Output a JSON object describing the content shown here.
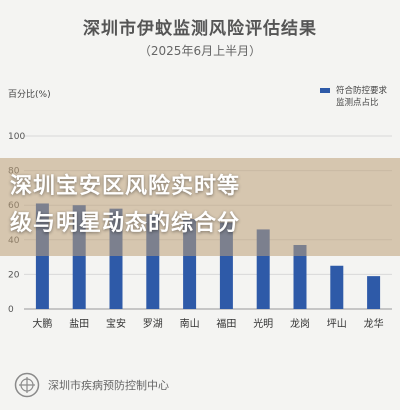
{
  "title": "深圳市伊蚊监测风险评估结果",
  "subtitle": "（2025年6月上半月）",
  "overlay_text": "深圳宝安区风险实时等\n级与明星动态的综合分",
  "footer": {
    "org": "深圳市疾病预防控制中心",
    "logo_icon": "cdc-logo-icon"
  },
  "colors": {
    "bar": "#2e5aa8",
    "grid": "#d8d8d8",
    "axis": "#555555"
  },
  "chart_data": {
    "type": "bar",
    "ylabel": "百分比(%)",
    "ylim": [
      0,
      100
    ],
    "yticks": [
      0,
      20,
      40,
      60,
      80,
      100
    ],
    "legend": {
      "label": "符合防控要求监测点占比",
      "position": "top-right"
    },
    "categories": [
      "大鹏",
      "盐田",
      "宝安",
      "罗湖",
      "南山",
      "福田",
      "光明",
      "龙岗",
      "坪山",
      "龙华"
    ],
    "series": [
      {
        "name": "符合防控要求监测点占比",
        "values": [
          61,
          60,
          58,
          55,
          52,
          50,
          46,
          37,
          25,
          19
        ]
      }
    ]
  }
}
